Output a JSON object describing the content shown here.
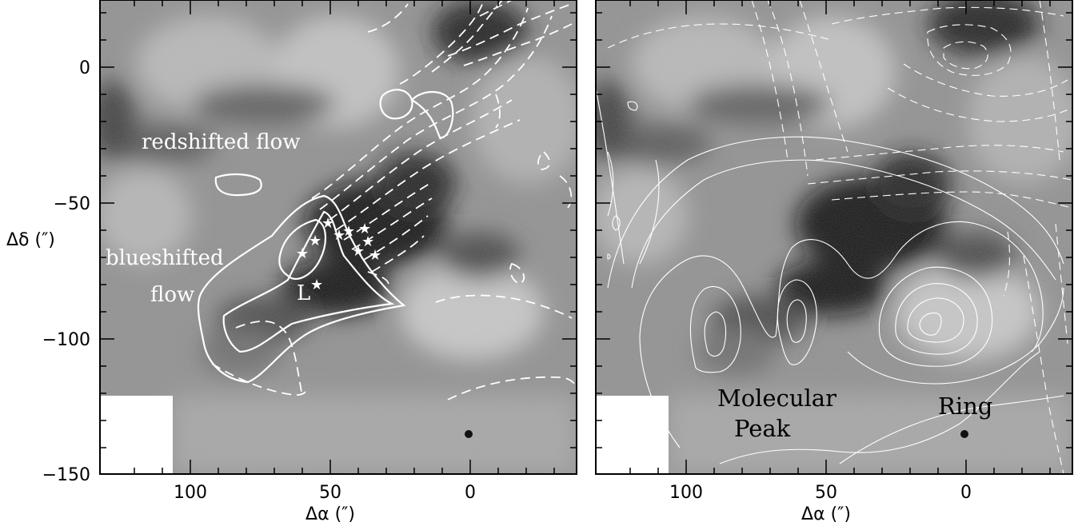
{
  "panels": [
    {
      "id": "left",
      "x_ticks": [
        "100",
        "50",
        "0"
      ],
      "y_ticks": [
        "0",
        "−50",
        "−100",
        "−150"
      ],
      "x_axis_label": "Δα (″)",
      "y_axis_label": "Δδ   (″)",
      "annotations": {
        "red_flow": "redshifted flow",
        "blue_flow_line1": "blueshifted",
        "blue_flow_line2": "flow",
        "source_l": "L"
      }
    },
    {
      "id": "right",
      "x_ticks": [
        "100",
        "50",
        "0"
      ],
      "x_axis_label": "Δα (″)",
      "annotations": {
        "molecular_peak_line1": "Molecular",
        "molecular_peak_line2": "Peak",
        "ring": "Ring"
      }
    }
  ],
  "colors": {
    "contour": "#ffffff",
    "axes": "#000000",
    "background_gray": "#8c8c8c"
  }
}
